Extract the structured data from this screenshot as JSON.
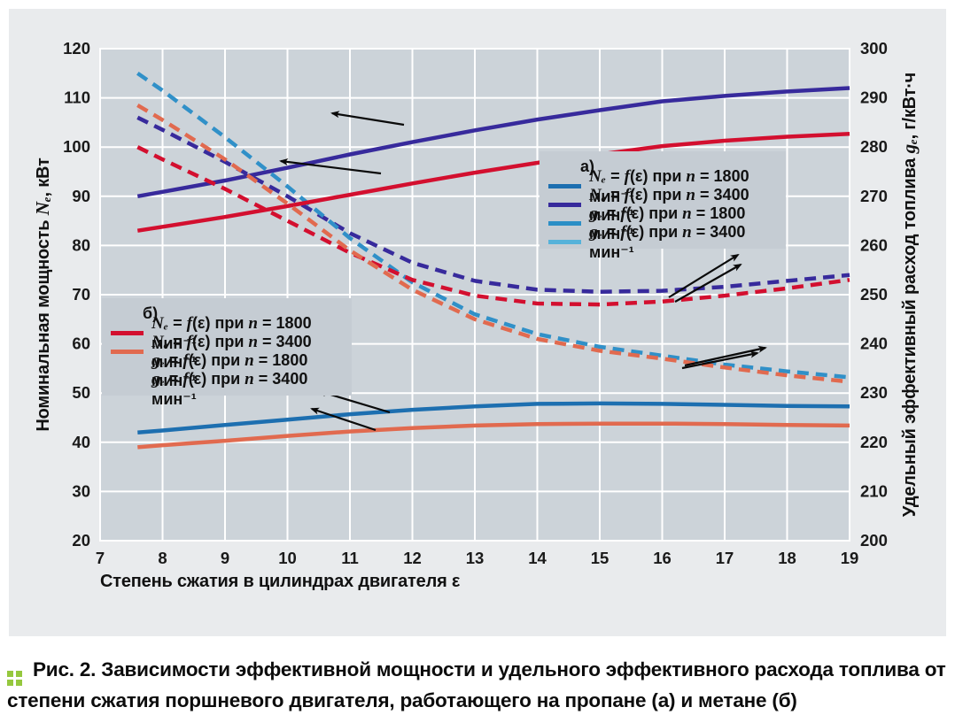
{
  "figure": {
    "caption": {
      "label": "Рис. 2.",
      "text": "Зависимости эффективной мощности и удельного эффективного расхода топлива от степени сжатия поршневого двигателя, работающего на пропане (а) и метане (б)",
      "marker_color": "#95c83e"
    }
  },
  "chart_data": {
    "type": "line",
    "background": {
      "panel": "#e9ebed",
      "plot": "#ccd3d9",
      "legend": "#c5ccd3",
      "grid": "#ffffff"
    },
    "x_axis": {
      "label": "Степень сжатия в цилиндрах двигателя ε",
      "range": [
        7,
        19
      ],
      "ticks": [
        7,
        8,
        9,
        10,
        11,
        12,
        13,
        14,
        15,
        16,
        17,
        18,
        19
      ]
    },
    "y_left": {
      "label": "Номинальная мощность *Nₑ*, кВт",
      "range": [
        20,
        120
      ],
      "ticks": [
        20,
        30,
        40,
        50,
        60,
        70,
        80,
        90,
        100,
        110,
        120
      ]
    },
    "y_right": {
      "label": "Удельный эффективный расход топлива *gₑ*, г/кВт·ч",
      "range": [
        200,
        300
      ],
      "ticks": [
        200,
        210,
        220,
        230,
        240,
        250,
        260,
        270,
        280,
        290,
        300
      ]
    },
    "x": [
      7.6,
      8,
      9,
      10,
      11,
      12,
      13,
      14,
      15,
      16,
      17,
      18,
      19
    ],
    "series": [
      {
        "id": "ne-1800-propane",
        "name": "Ne 1800 (пропан)",
        "axis": "left",
        "color": "#1d6fb0",
        "dash": false,
        "values": [
          42,
          42.4,
          43.5,
          44.6,
          45.7,
          46.6,
          47.3,
          47.8,
          47.9,
          47.8,
          47.6,
          47.4,
          47.3
        ]
      },
      {
        "id": "ne-3400-propane",
        "name": "Ne 3400 (пропан)",
        "axis": "left",
        "color": "#372a9c",
        "dash": false,
        "values": [
          90,
          90.9,
          93.2,
          95.8,
          98.5,
          101,
          103.4,
          105.6,
          107.5,
          109.3,
          110.4,
          111.3,
          112
        ]
      },
      {
        "id": "ge-1800-propane",
        "name": "ge 1800 (пропан)",
        "axis": "right",
        "color": "#372a9c",
        "dash": true,
        "values": [
          286,
          283.5,
          277,
          270,
          262.5,
          256.5,
          252.8,
          251,
          250.6,
          250.8,
          251.6,
          252.8,
          254
        ]
      },
      {
        "id": "ge-3400-propane",
        "name": "ge 3400 (пропан)",
        "axis": "right",
        "color": "#3090c8",
        "dash": true,
        "values": [
          295,
          291.5,
          282,
          272,
          261.5,
          252.5,
          246,
          242,
          239.4,
          237.6,
          235.8,
          234.4,
          233.2
        ]
      },
      {
        "id": "ne-1800-methane",
        "name": "Ne 1800 (метан)",
        "axis": "left",
        "color": "#d30f2f",
        "dash": false,
        "values": [
          83,
          83.8,
          85.8,
          88,
          90.3,
          92.6,
          94.8,
          96.8,
          98.5,
          100.2,
          101.3,
          102.1,
          102.7
        ]
      },
      {
        "id": "ne-3400-methane",
        "name": "Ne 3400 (метан)",
        "axis": "left",
        "color": "#e16a4f",
        "dash": false,
        "values": [
          39,
          39.4,
          40.3,
          41.3,
          42.2,
          42.9,
          43.4,
          43.7,
          43.8,
          43.8,
          43.7,
          43.5,
          43.4
        ]
      },
      {
        "id": "ge-1800-methane",
        "name": "ge 1800 (метан)",
        "axis": "right",
        "color": "#d30f2f",
        "dash": true,
        "values": [
          280,
          277.5,
          271.5,
          265,
          258.5,
          253,
          249.8,
          248.2,
          248,
          248.6,
          249.8,
          251.3,
          253
        ]
      },
      {
        "id": "ge-3400-methane",
        "name": "ge 3400 (метан)",
        "axis": "right",
        "color": "#e16a4f",
        "dash": true,
        "values": [
          288.5,
          285.5,
          277.5,
          268.5,
          259,
          251,
          245,
          241,
          238.6,
          237,
          235.2,
          233.6,
          232.3
        ]
      }
    ],
    "legends": [
      {
        "id": "a",
        "title": "а)",
        "entries": [
          {
            "swatch": "#1d6fb0",
            "dash": false,
            "label": "*Nₑ* = *f*(ε) при *n* = 1800 мин⁻¹"
          },
          {
            "swatch": "#372a9c",
            "dash": false,
            "label": "*Nₑ* = *f*(ε) при *n* = 3400 мин⁻¹"
          },
          {
            "swatch": "#2b8fc6",
            "dash": false,
            "label": "*gₑ* = *f*(ε) при *n* = 1800 мин⁻¹"
          },
          {
            "swatch": "#56b2da",
            "dash": false,
            "label": "*gₑ* = *f*(ε) при *n* = 3400 мин⁻¹"
          }
        ]
      },
      {
        "id": "b",
        "title": "б)",
        "entries": [
          {
            "swatch": "#d30f2f",
            "dash": false,
            "label": "*Nₑ* = *f*(ε) при *n* = 1800 мин⁻¹"
          },
          {
            "swatch": "#e16a4f",
            "dash": false,
            "label": "*Nₑ* = *f*(ε) при *n* = 3400 мин⁻¹"
          },
          {
            "swatch": "#d30f2f",
            "dash": true,
            "label": "*gₑ* = *f*(ε) при *n* = 1800 мин⁻¹"
          },
          {
            "swatch": "#e16a4f",
            "dash": true,
            "label": "*gₑ* = *f*(ε) при *n* = 3400 мин⁻¹"
          }
        ]
      }
    ],
    "annotations": {
      "arrows": [
        {
          "from": [
            446,
            131
          ],
          "to": [
            365,
            118
          ]
        },
        {
          "from": [
            420,
            186
          ],
          "to": [
            307,
            172
          ]
        },
        {
          "from": [
            430,
            456
          ],
          "to": [
            350,
            432
          ]
        },
        {
          "from": [
            414,
            476
          ],
          "to": [
            342,
            452
          ]
        },
        {
          "from": [
            745,
            326
          ],
          "to": [
            823,
            278
          ]
        },
        {
          "from": [
            752,
            331
          ],
          "to": [
            826,
            289
          ]
        },
        {
          "from": [
            763,
            403
          ],
          "to": [
            854,
            383
          ]
        },
        {
          "from": [
            760,
            406
          ],
          "to": [
            845,
            389
          ]
        }
      ]
    }
  }
}
